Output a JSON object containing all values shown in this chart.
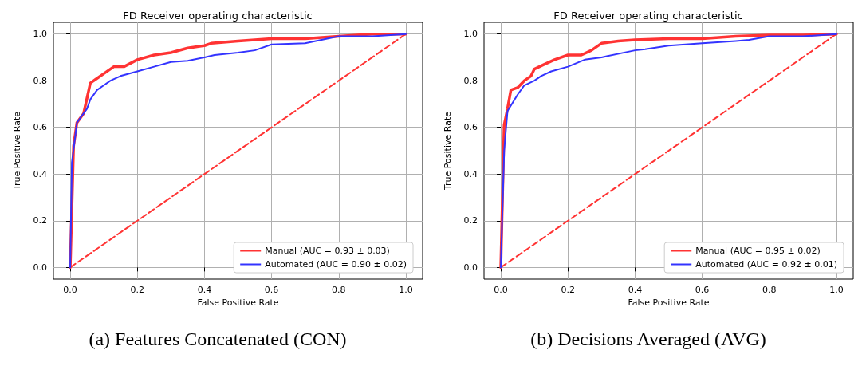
{
  "chart_data": [
    {
      "type": "line",
      "title": "FD Receiver operating characteristic",
      "xlabel": "False Positive Rate",
      "ylabel": "True Positive Rate",
      "annotations": [
        "(a) Features Concatenated (CON)"
      ],
      "xlim": [
        -0.05,
        1.05
      ],
      "ylim": [
        -0.05,
        1.05
      ],
      "xticks": [
        {
          "value": 0,
          "label": "0.0"
        },
        {
          "value": 0.2,
          "label": "0.2"
        },
        {
          "value": 0.4,
          "label": "0.4"
        },
        {
          "value": 0.6,
          "label": "0.6"
        },
        {
          "value": 0.8,
          "label": "0.8"
        },
        {
          "value": 1,
          "label": "1.0"
        }
      ],
      "yticks": [
        {
          "value": 0,
          "label": "0.0"
        },
        {
          "value": 0.2,
          "label": "0.2"
        },
        {
          "value": 0.4,
          "label": "0.4"
        },
        {
          "value": 0.6,
          "label": "0.6"
        },
        {
          "value": 0.8,
          "label": "0.8"
        },
        {
          "value": 1,
          "label": "1.0"
        }
      ],
      "grid": true,
      "legend": "bottom right",
      "marker": "none",
      "series": [
        {
          "name": "Manual (AUC = 0.93 ± 0.03)",
          "color": "#ff3333",
          "x": [
            0,
            0.01,
            0.02,
            0.04,
            0.06,
            0.08,
            0.1,
            0.13,
            0.16,
            0.2,
            0.25,
            0.3,
            0.35,
            0.4,
            0.42,
            0.5,
            0.6,
            0.7,
            0.8,
            0.9,
            1
          ],
          "values": [
            0,
            0.52,
            0.62,
            0.66,
            0.79,
            0.81,
            0.83,
            0.86,
            0.86,
            0.89,
            0.91,
            0.92,
            0.94,
            0.95,
            0.96,
            0.97,
            0.98,
            0.98,
            0.99,
            1.0,
            1.0
          ]
        },
        {
          "name": "Automated (AUC = 0.90 ± 0.02)",
          "color": "#3333ff",
          "x": [
            0,
            0.005,
            0.02,
            0.04,
            0.05,
            0.06,
            0.08,
            0.1,
            0.12,
            0.15,
            0.2,
            0.25,
            0.3,
            0.35,
            0.4,
            0.43,
            0.5,
            0.55,
            0.6,
            0.7,
            0.8,
            0.9,
            1
          ],
          "values": [
            0,
            0.45,
            0.62,
            0.66,
            0.68,
            0.72,
            0.76,
            0.78,
            0.8,
            0.82,
            0.84,
            0.86,
            0.88,
            0.885,
            0.9,
            0.91,
            0.92,
            0.93,
            0.955,
            0.96,
            0.99,
            0.99,
            1.0
          ]
        },
        {
          "color": "#ff3333",
          "line_style": "dashed",
          "x": [
            0,
            1
          ],
          "values": [
            0,
            1
          ]
        }
      ]
    },
    {
      "type": "line",
      "title": "FD Receiver operating characteristic",
      "xlabel": "False Positive Rate",
      "ylabel": "True Positive Rate",
      "annotations": [
        "(b) Decisions Averaged (AVG)"
      ],
      "xlim": [
        -0.05,
        1.05
      ],
      "ylim": [
        -0.05,
        1.05
      ],
      "xticks": [
        {
          "value": 0,
          "label": "0.0"
        },
        {
          "value": 0.2,
          "label": "0.2"
        },
        {
          "value": 0.4,
          "label": "0.4"
        },
        {
          "value": 0.6,
          "label": "0.6"
        },
        {
          "value": 0.8,
          "label": "0.8"
        },
        {
          "value": 1,
          "label": "1.0"
        }
      ],
      "yticks": [
        {
          "value": 0,
          "label": "0.0"
        },
        {
          "value": 0.2,
          "label": "0.2"
        },
        {
          "value": 0.4,
          "label": "0.4"
        },
        {
          "value": 0.6,
          "label": "0.6"
        },
        {
          "value": 0.8,
          "label": "0.8"
        },
        {
          "value": 1,
          "label": "1.0"
        }
      ],
      "grid": true,
      "legend": "bottom right",
      "marker": "none",
      "series": [
        {
          "name": "Manual (AUC = 0.95 ± 0.02)",
          "color": "#ff3333",
          "x": [
            0,
            0.01,
            0.02,
            0.03,
            0.05,
            0.07,
            0.09,
            0.1,
            0.13,
            0.16,
            0.2,
            0.24,
            0.27,
            0.3,
            0.35,
            0.4,
            0.5,
            0.6,
            0.7,
            0.8,
            0.9,
            1
          ],
          "values": [
            0,
            0.61,
            0.68,
            0.76,
            0.77,
            0.8,
            0.82,
            0.85,
            0.87,
            0.89,
            0.91,
            0.91,
            0.93,
            0.96,
            0.97,
            0.975,
            0.98,
            0.98,
            0.99,
            0.995,
            0.995,
            1.0
          ]
        },
        {
          "name": "Automated (AUC = 0.92 ± 0.01)",
          "color": "#3333ff",
          "x": [
            0,
            0.01,
            0.02,
            0.05,
            0.07,
            0.1,
            0.12,
            0.15,
            0.2,
            0.25,
            0.3,
            0.4,
            0.43,
            0.5,
            0.6,
            0.7,
            0.74,
            0.8,
            0.9,
            1
          ],
          "values": [
            0,
            0.5,
            0.67,
            0.74,
            0.78,
            0.8,
            0.82,
            0.84,
            0.86,
            0.89,
            0.9,
            0.93,
            0.935,
            0.95,
            0.96,
            0.97,
            0.975,
            0.99,
            0.99,
            1.0
          ]
        },
        {
          "color": "#ff3333",
          "line_style": "dashed",
          "x": [
            0,
            1
          ],
          "values": [
            0,
            1
          ]
        }
      ]
    }
  ]
}
